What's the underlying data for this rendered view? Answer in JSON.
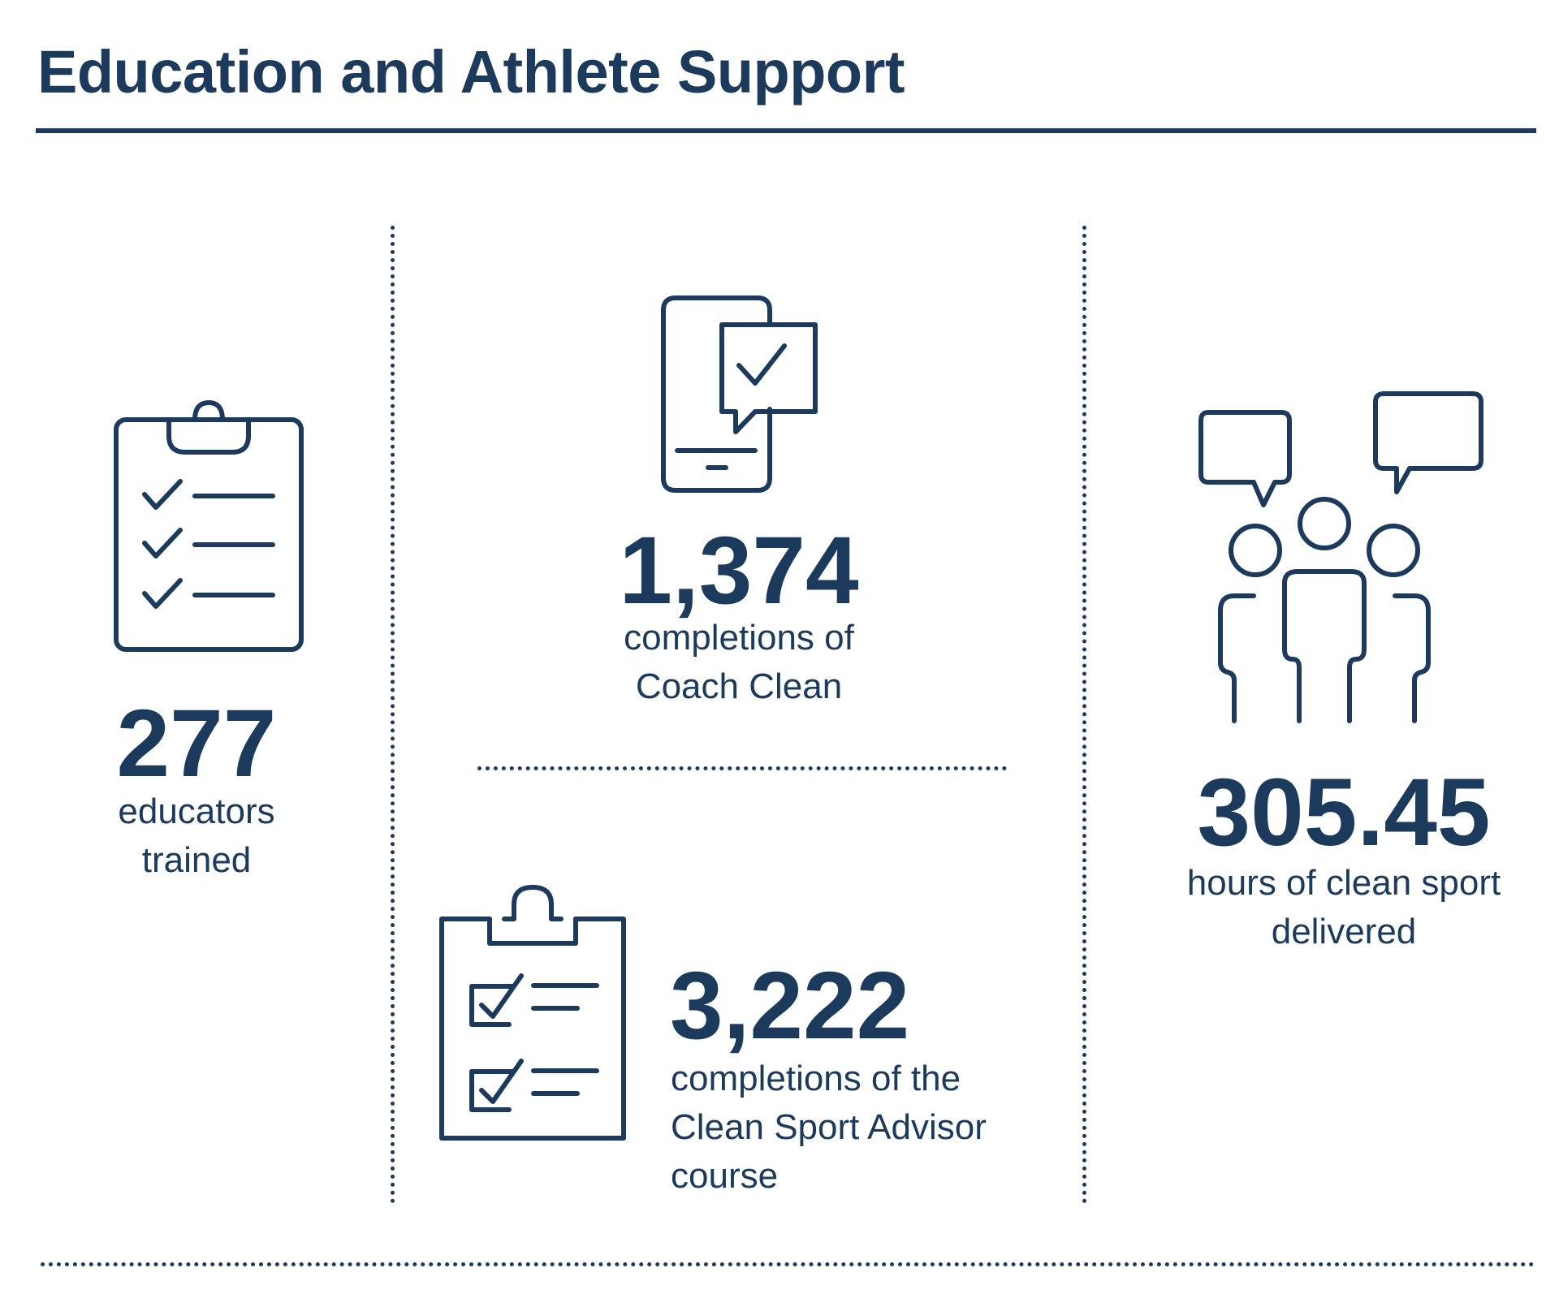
{
  "header": {
    "title": "Education and Athlete Support"
  },
  "stats": {
    "educators": {
      "value": "277",
      "label_line1": "educators",
      "label_line2": "trained"
    },
    "coach_clean": {
      "value": "1,374",
      "label_line1": "completions of",
      "label_line2": "Coach Clean"
    },
    "clean_sport_advisor": {
      "value": "3,222",
      "label_line1": "completions of the",
      "label_line2": "Clean Sport Advisor",
      "label_line3": "course"
    },
    "hours": {
      "value": "305.45",
      "label_line1": "hours of clean sport",
      "label_line2": "delivered"
    }
  },
  "icons": {
    "educators": "clipboard-checklist-icon",
    "coach_clean": "mobile-phone-check-message-icon",
    "clean_sport_advisor": "clipboard-checkbox-icon",
    "hours": "people-speech-bubbles-icon"
  },
  "colors": {
    "primary": "#1b3a5c",
    "background": "#ffffff"
  }
}
